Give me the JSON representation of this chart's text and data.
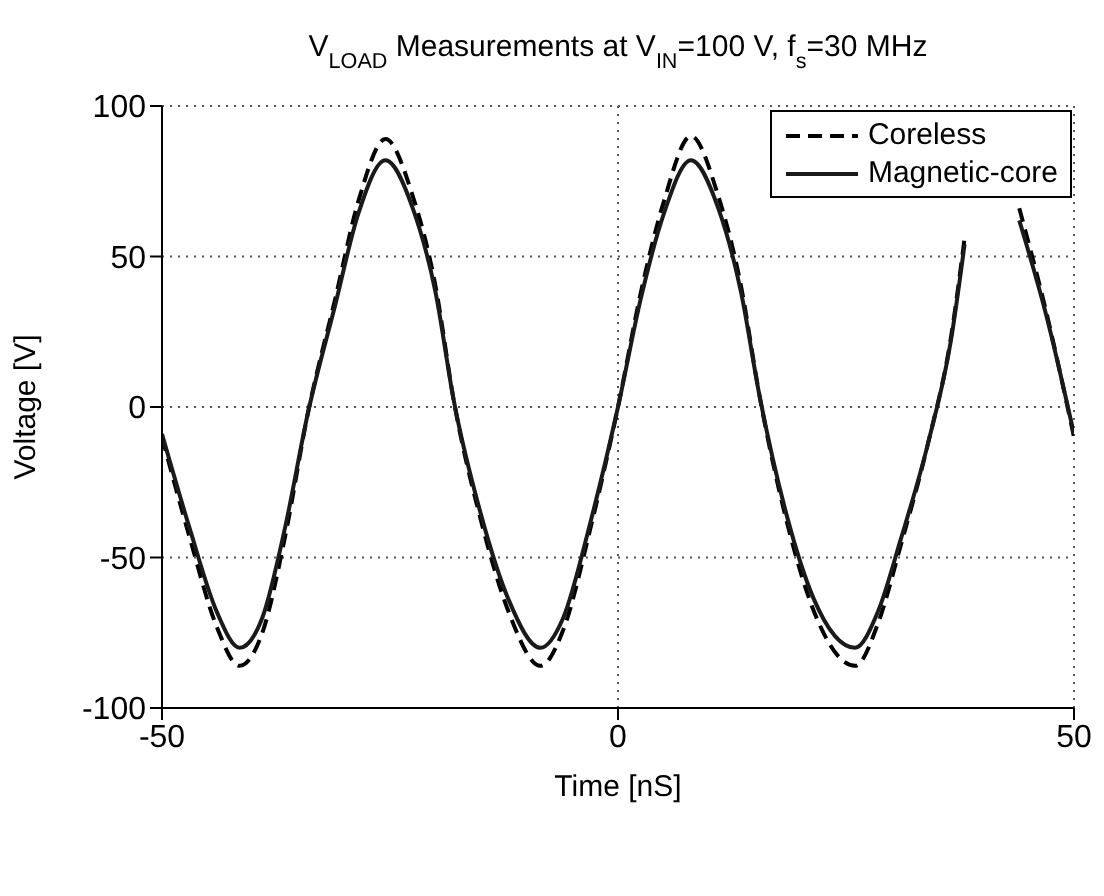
{
  "chart_data": {
    "type": "line",
    "title": "V$_{LOAD}$ Measurements at V$_{IN}$=100 V, f$_{s}$=30 MHz",
    "xlabel": "Time [nS]",
    "ylabel": "Voltage [V]",
    "x": [
      -50,
      -47,
      -44,
      -41.5,
      -39,
      -36.5,
      -34,
      -31,
      -28.5,
      -25.5,
      -22.5,
      -20,
      -18,
      -15,
      -12,
      -8.5,
      -6,
      -3,
      0,
      2.5,
      5,
      8,
      11,
      13.5,
      15.5,
      18.5,
      21.5,
      26,
      28.5,
      31,
      34,
      36.5,
      38,
      40,
      42,
      44,
      47,
      50
    ],
    "series": [
      {
        "name": "Coreless",
        "color": "#000000",
        "line_style": "dashed",
        "values": [
          -10,
          -43,
          -73,
          -86,
          -75,
          -43,
          -2,
          36,
          68,
          89,
          70,
          40,
          2,
          -38,
          -68,
          -86,
          -74,
          -40,
          0,
          38,
          68,
          90,
          70,
          40,
          4,
          -38,
          -68,
          -86,
          -72,
          -46,
          -12,
          23,
          56,
          null,
          null,
          66,
          31,
          -10
        ]
      },
      {
        "name": "Magnetic-core",
        "color": "#1a1a1a",
        "line_style": "solid",
        "values": [
          -9,
          -40,
          -68,
          -80,
          -70,
          -40,
          -2,
          34,
          64,
          82,
          66,
          38,
          2,
          -36,
          -64,
          -80,
          -70,
          -38,
          0,
          36,
          64,
          82,
          66,
          38,
          4,
          -36,
          -64,
          -80,
          -68,
          -44,
          -12,
          22,
          54,
          null,
          null,
          62,
          30,
          -9
        ]
      }
    ],
    "xlim": [
      -50,
      50
    ],
    "xticks": [
      -50,
      0,
      50
    ],
    "ylim": [
      -100,
      100
    ],
    "yticks": [
      -100,
      -50,
      0,
      50,
      100
    ],
    "grid": true,
    "legend": "top right",
    "marker": "none"
  }
}
